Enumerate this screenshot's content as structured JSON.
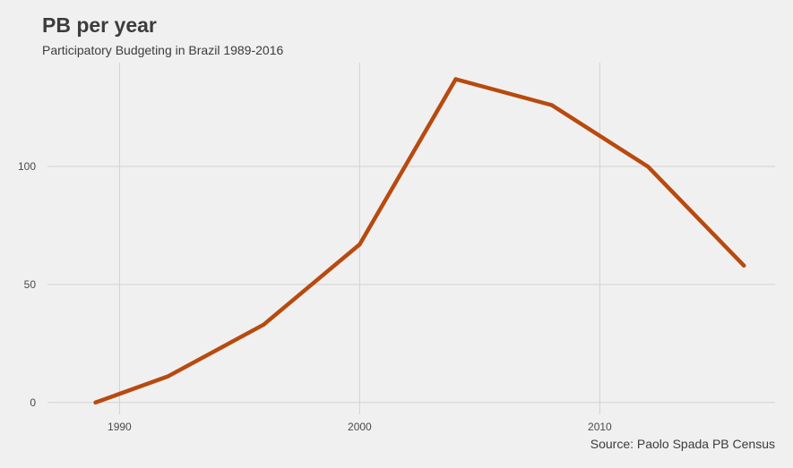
{
  "chart_data": {
    "type": "line",
    "title": "PB per year",
    "subtitle": "Participatory Budgeting in Brazil 1989-2016",
    "caption": "Source: Paolo Spada PB Census",
    "xlabel": "",
    "ylabel": "",
    "x": [
      1989,
      1992,
      1996,
      2000,
      2004,
      2008,
      2012,
      2016
    ],
    "series": [
      {
        "values": [
          0,
          11,
          33,
          67,
          137,
          126,
          100,
          58
        ]
      }
    ],
    "xlim": [
      1987,
      2017.3
    ],
    "ylim": [
      -5,
      144
    ],
    "x_ticks": [
      1990,
      2000,
      2010
    ],
    "y_ticks": [
      0,
      50,
      100
    ],
    "grid": true,
    "line_color": "#b84a0f",
    "grid_color": "#d2d2d2",
    "background": "#f0f0f0"
  }
}
